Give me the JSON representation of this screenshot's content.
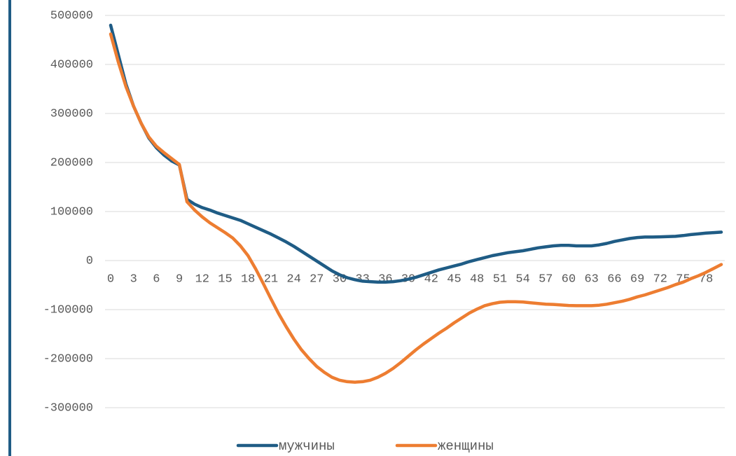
{
  "chart_data": {
    "type": "line",
    "categories": [
      "0",
      null,
      null,
      "3",
      null,
      null,
      "6",
      null,
      null,
      "9",
      null,
      null,
      "12",
      null,
      null,
      "15",
      null,
      null,
      "18",
      null,
      null,
      "21",
      null,
      null,
      "24",
      null,
      null,
      "27",
      null,
      null,
      "30",
      null,
      null,
      "33",
      null,
      null,
      "36",
      null,
      null,
      "39",
      null,
      null,
      "42",
      null,
      null,
      "45",
      null,
      null,
      "48",
      null,
      null,
      "51",
      null,
      null,
      "54",
      null,
      null,
      "57",
      null,
      null,
      "60",
      null,
      null,
      "63",
      null,
      null,
      "66",
      null,
      null,
      "69",
      null,
      null,
      "72",
      null,
      null,
      "75",
      null,
      null,
      "78",
      null,
      null
    ],
    "series": [
      {
        "name": "мужчины",
        "color": "#1f5c85",
        "values": [
          480000,
          420000,
          360000,
          315000,
          280000,
          250000,
          230000,
          215000,
          203000,
          195000,
          125000,
          115000,
          108000,
          103000,
          97000,
          92000,
          87000,
          82000,
          75000,
          68000,
          61000,
          54000,
          46000,
          38000,
          29000,
          19000,
          9000,
          -1000,
          -11000,
          -21000,
          -29000,
          -35000,
          -39000,
          -42000,
          -43000,
          -44000,
          -44000,
          -43000,
          -41000,
          -38000,
          -34000,
          -29000,
          -24000,
          -19000,
          -15000,
          -11000,
          -7000,
          -2000,
          2000,
          6000,
          10000,
          13000,
          16000,
          18000,
          20000,
          23000,
          26000,
          28000,
          30000,
          31000,
          31000,
          30000,
          30000,
          30000,
          32000,
          35000,
          39000,
          42000,
          45000,
          47000,
          48000,
          48000,
          48500,
          49000,
          49500,
          51000,
          53000,
          54500,
          56000,
          57000,
          58000
        ]
      },
      {
        "name": "женщины",
        "color": "#ed7d31",
        "values": [
          462000,
          405000,
          355000,
          315000,
          280000,
          252000,
          233000,
          220000,
          208000,
          196000,
          120000,
          103000,
          89000,
          77000,
          67000,
          57000,
          46000,
          30000,
          10000,
          -17000,
          -47000,
          -78000,
          -108000,
          -135000,
          -160000,
          -182000,
          -200000,
          -216000,
          -228000,
          -238000,
          -244000,
          -247000,
          -248000,
          -247000,
          -244000,
          -238000,
          -230000,
          -220000,
          -208000,
          -195000,
          -182000,
          -170000,
          -159000,
          -148000,
          -138000,
          -127000,
          -117000,
          -107000,
          -99000,
          -92000,
          -88000,
          -85000,
          -84000,
          -84000,
          -84500,
          -86000,
          -87500,
          -89000,
          -89500,
          -90500,
          -91500,
          -92000,
          -92000,
          -92000,
          -91000,
          -89000,
          -86000,
          -83000,
          -79000,
          -74000,
          -70000,
          -65000,
          -60000,
          -55000,
          -49000,
          -44000,
          -37000,
          -31000,
          -24000,
          -16000,
          -8000
        ]
      }
    ],
    "ylim": [
      -300000,
      500000
    ],
    "yticks": [
      -300000,
      -200000,
      -100000,
      0,
      100000,
      200000,
      300000,
      400000,
      500000
    ],
    "grid": true,
    "legend": "bottom"
  }
}
